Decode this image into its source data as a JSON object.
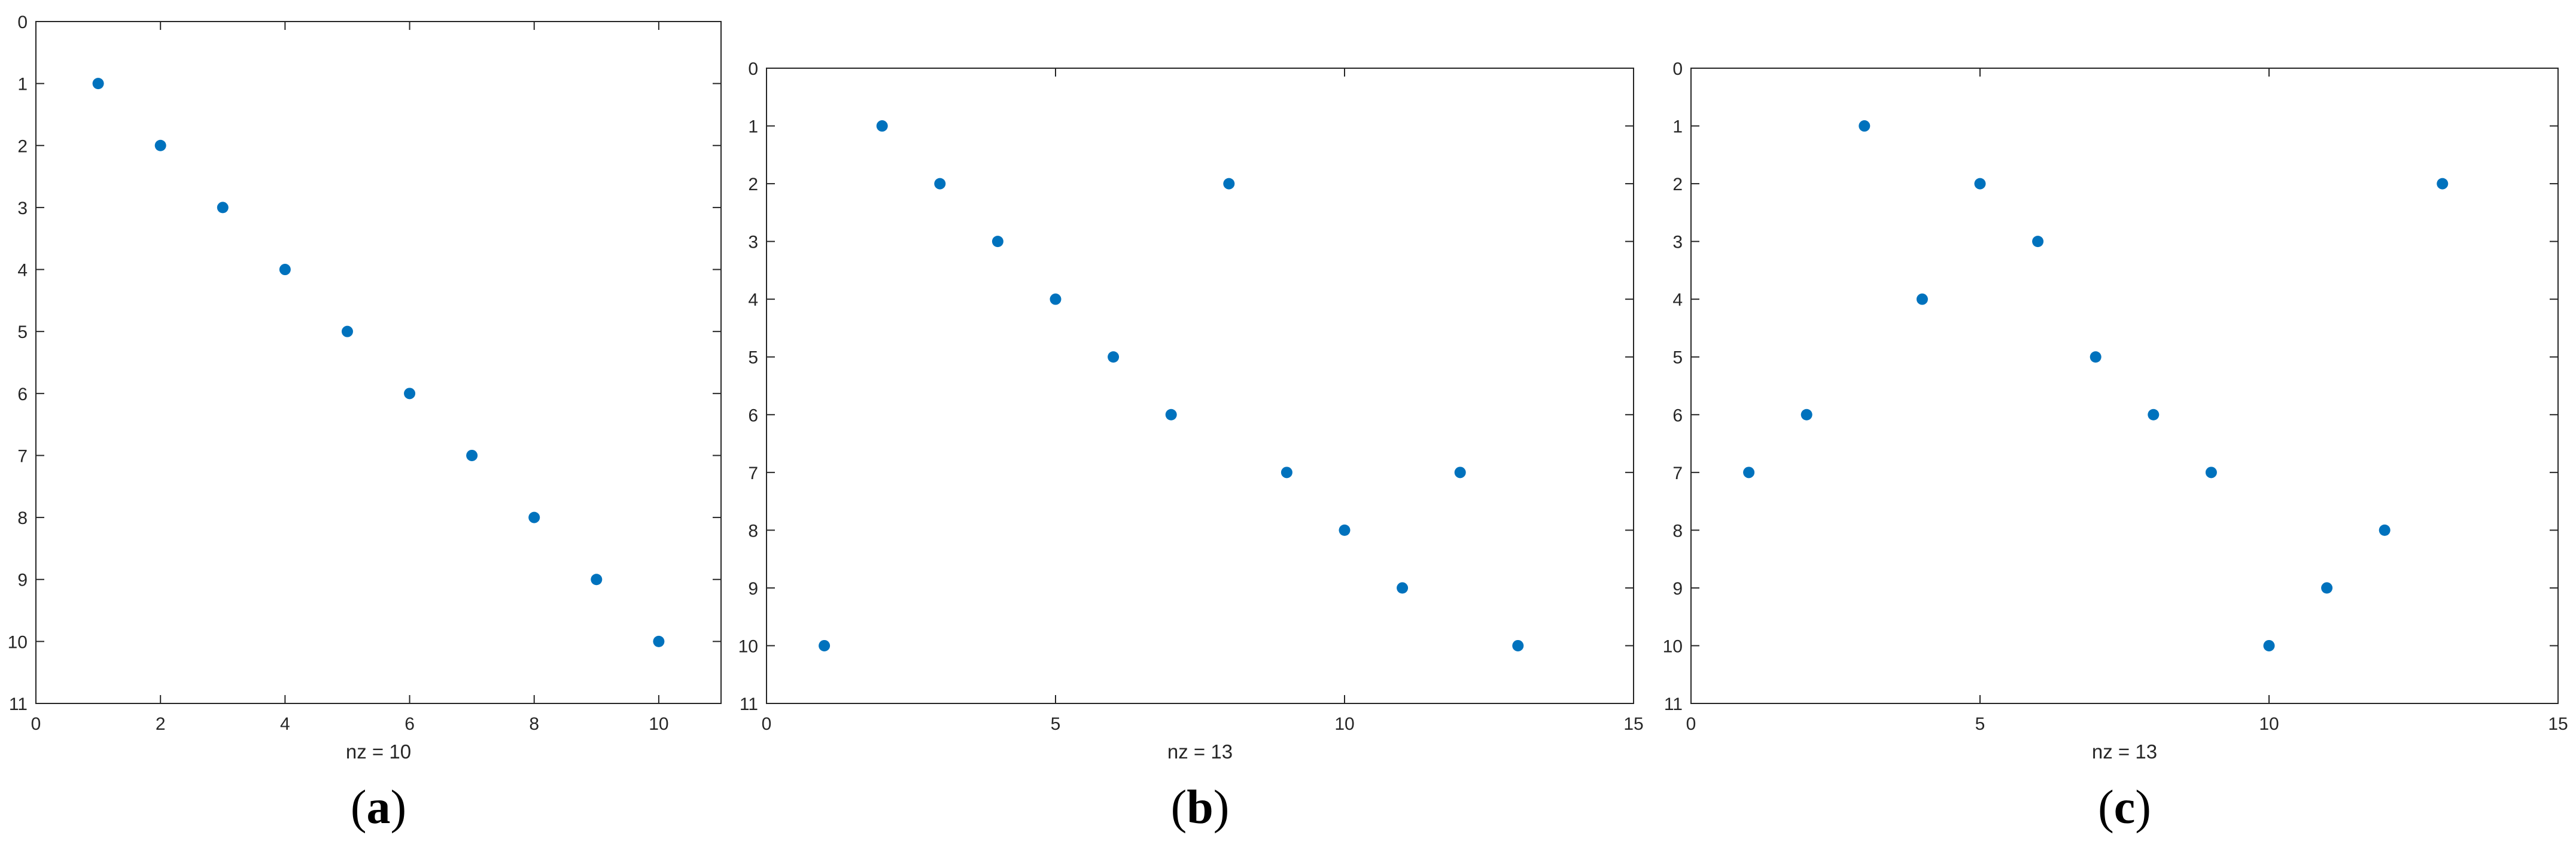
{
  "chart_data": [
    {
      "type": "scatter",
      "panel_label": "a",
      "xlabel": "nz = 10",
      "xlim": [
        0,
        11
      ],
      "ylim": [
        0,
        11
      ],
      "y_reversed": true,
      "xticks": [
        0,
        2,
        4,
        6,
        8,
        10
      ],
      "yticks": [
        0,
        1,
        2,
        3,
        4,
        5,
        6,
        7,
        8,
        9,
        10,
        11
      ],
      "grid": false,
      "marker_color": "#0072BD",
      "points": [
        [
          1,
          1
        ],
        [
          2,
          2
        ],
        [
          3,
          3
        ],
        [
          4,
          4
        ],
        [
          5,
          5
        ],
        [
          6,
          6
        ],
        [
          7,
          7
        ],
        [
          8,
          8
        ],
        [
          9,
          9
        ],
        [
          10,
          10
        ]
      ]
    },
    {
      "type": "scatter",
      "panel_label": "b",
      "xlabel": "nz = 13",
      "xlim": [
        0,
        15
      ],
      "ylim": [
        0,
        11
      ],
      "y_reversed": true,
      "xticks": [
        0,
        5,
        10,
        15
      ],
      "yticks": [
        0,
        1,
        2,
        3,
        4,
        5,
        6,
        7,
        8,
        9,
        10,
        11
      ],
      "grid": false,
      "marker_color": "#0072BD",
      "points": [
        [
          1,
          10
        ],
        [
          2,
          1
        ],
        [
          3,
          2
        ],
        [
          4,
          3
        ],
        [
          5,
          4
        ],
        [
          6,
          5
        ],
        [
          7,
          6
        ],
        [
          8,
          2
        ],
        [
          9,
          7
        ],
        [
          10,
          8
        ],
        [
          11,
          9
        ],
        [
          12,
          7
        ],
        [
          13,
          10
        ]
      ]
    },
    {
      "type": "scatter",
      "panel_label": "c",
      "xlabel": "nz = 13",
      "xlim": [
        0,
        15
      ],
      "ylim": [
        0,
        11
      ],
      "y_reversed": true,
      "xticks": [
        0,
        5,
        10,
        15
      ],
      "yticks": [
        0,
        1,
        2,
        3,
        4,
        5,
        6,
        7,
        8,
        9,
        10,
        11
      ],
      "grid": false,
      "marker_color": "#0072BD",
      "points": [
        [
          1,
          7
        ],
        [
          2,
          6
        ],
        [
          3,
          1
        ],
        [
          4,
          4
        ],
        [
          5,
          2
        ],
        [
          6,
          3
        ],
        [
          7,
          5
        ],
        [
          8,
          6
        ],
        [
          9,
          7
        ],
        [
          10,
          10
        ],
        [
          11,
          9
        ],
        [
          12,
          8
        ],
        [
          13,
          2
        ]
      ]
    }
  ]
}
